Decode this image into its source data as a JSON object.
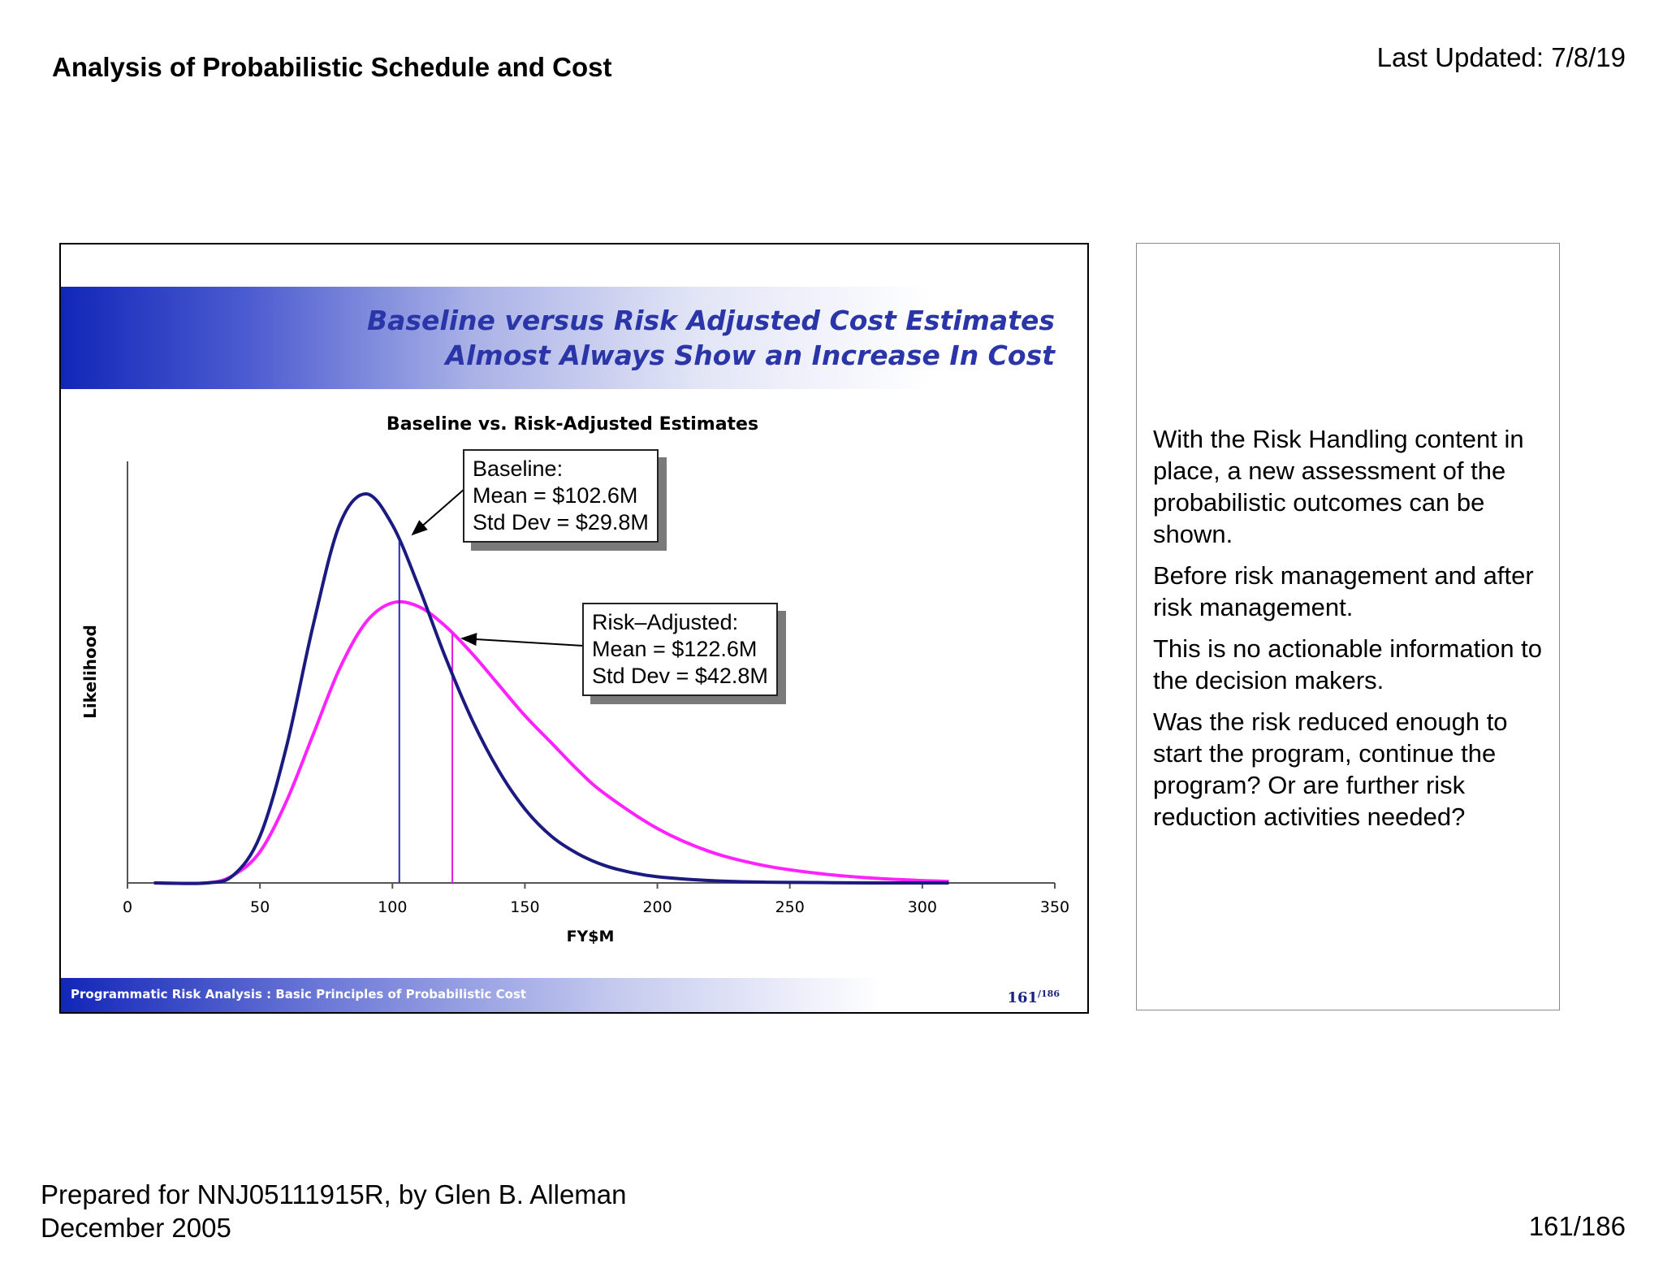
{
  "header": {
    "title": "Analysis of Probabilistic Schedule and Cost",
    "last_updated": "Last Updated: 7/8/19"
  },
  "slide": {
    "heading_line1": "Baseline versus Risk Adjusted Cost Estimates",
    "heading_line2": "Almost Always Show an Increase In Cost",
    "footer_text": "Programmatic Risk Analysis  : Basic Principles of Probabilistic Cost",
    "footer_page": "161",
    "footer_total": "/186",
    "callouts": {
      "baseline": {
        "title": "Baseline:",
        "mean": "Mean = $102.6M",
        "std": "Std Dev = $29.8M"
      },
      "risk_adjusted": {
        "title": "Risk–Adjusted:",
        "mean": "Mean = $122.6M",
        "std": "Std Dev = $42.8M"
      }
    }
  },
  "chart_data": {
    "type": "line",
    "title": "Baseline vs. Risk-Adjusted Estimates",
    "xlabel": "FY$M",
    "ylabel": "Likelihood",
    "xlim": [
      0,
      350
    ],
    "xticks": [
      0,
      50,
      100,
      150,
      200,
      250,
      300,
      350
    ],
    "grid": false,
    "series": [
      {
        "name": "Baseline",
        "color": "#1a1a80",
        "mean": 102.6,
        "std_dev": 29.8,
        "x": [
          10,
          30,
          40,
          50,
          60,
          70,
          80,
          90,
          100,
          110,
          120,
          130,
          140,
          150,
          160,
          170,
          180,
          190,
          200,
          220,
          240,
          260,
          280,
          310
        ],
        "values": [
          0.0,
          0.0,
          0.02,
          0.12,
          0.35,
          0.66,
          0.92,
          1.0,
          0.92,
          0.76,
          0.58,
          0.42,
          0.29,
          0.19,
          0.12,
          0.075,
          0.045,
          0.027,
          0.016,
          0.006,
          0.002,
          0.001,
          0.0,
          0.0
        ],
        "mean_marker_height": 0.88
      },
      {
        "name": "Risk–Adjusted",
        "color": "#ff22ff",
        "mean": 122.6,
        "std_dev": 42.8,
        "x": [
          10,
          30,
          40,
          50,
          60,
          70,
          80,
          90,
          100,
          110,
          120,
          130,
          140,
          150,
          160,
          170,
          180,
          200,
          220,
          240,
          260,
          280,
          300,
          310
        ],
        "values": [
          0.0,
          0.0,
          0.02,
          0.08,
          0.21,
          0.38,
          0.55,
          0.67,
          0.72,
          0.71,
          0.66,
          0.59,
          0.51,
          0.43,
          0.36,
          0.29,
          0.23,
          0.14,
          0.08,
          0.045,
          0.025,
          0.013,
          0.006,
          0.004
        ],
        "mean_marker_height": 0.63
      }
    ]
  },
  "notes": {
    "p1": "With the Risk Handling content in place, a new assessment of the probabilistic outcomes can be shown.",
    "p2": "Before risk management and after risk management.",
    "p3": "This is no actionable information to the decision makers.",
    "p4": "Was the risk reduced enough to start the program, continue the program? Or are further risk reduction activities needed?"
  },
  "footer": {
    "prepared_line1": "Prepared for NNJ05111915R, by Glen B. Alleman",
    "prepared_line2": "December 2005",
    "page": "161/186"
  }
}
